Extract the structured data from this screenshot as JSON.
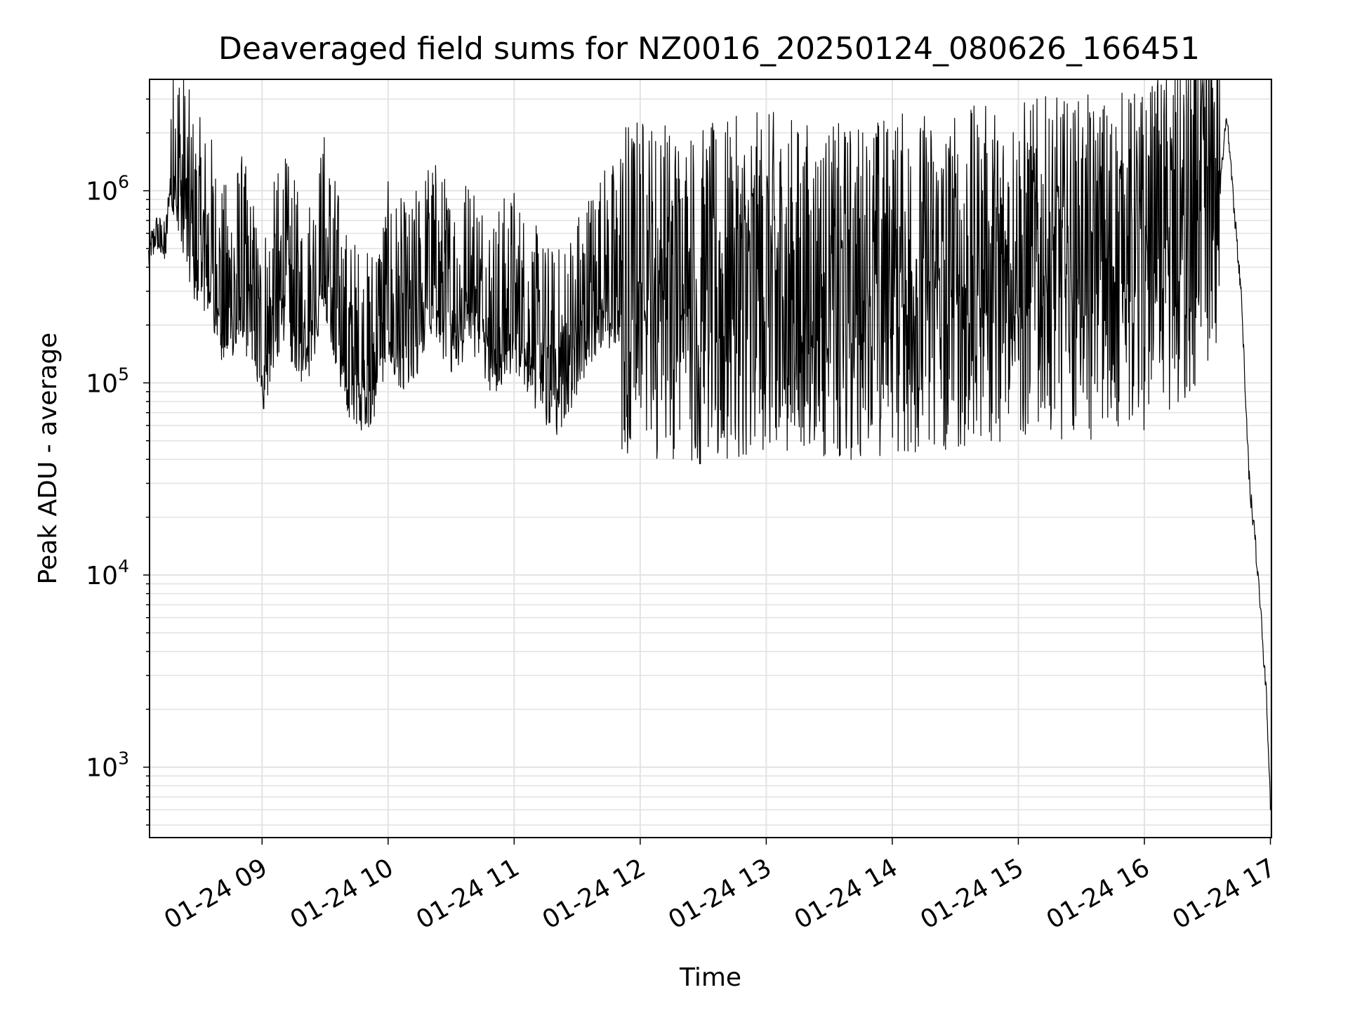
{
  "chart_data": {
    "type": "line",
    "title": "Deaveraged field sums for NZ0016_20250124_080626_166451",
    "xlabel": "Time",
    "ylabel": "Peak ADU - average",
    "yscale": "log",
    "ylim": [
      430,
      3800000
    ],
    "xlim": [
      "2025-01-24 08:06:26",
      "2025-01-24 17:00:30"
    ],
    "grid": true,
    "line_color": "#000000",
    "grid_color": "#e3e3e3",
    "x_ticks": [
      {
        "t": "2025-01-24 09:00",
        "label": "01-24 09"
      },
      {
        "t": "2025-01-24 10:00",
        "label": "01-24 10"
      },
      {
        "t": "2025-01-24 11:00",
        "label": "01-24 11"
      },
      {
        "t": "2025-01-24 12:00",
        "label": "01-24 12"
      },
      {
        "t": "2025-01-24 13:00",
        "label": "01-24 13"
      },
      {
        "t": "2025-01-24 14:00",
        "label": "01-24 14"
      },
      {
        "t": "2025-01-24 15:00",
        "label": "01-24 15"
      },
      {
        "t": "2025-01-24 16:00",
        "label": "01-24 16"
      },
      {
        "t": "2025-01-24 17:00",
        "label": "01-24 17"
      }
    ],
    "y_ticks": [
      {
        "value": 1000,
        "base": "10",
        "exp": "3"
      },
      {
        "value": 10000,
        "base": "10",
        "exp": "4"
      },
      {
        "value": 100000,
        "base": "10",
        "exp": "5"
      },
      {
        "value": 1000000,
        "base": "10",
        "exp": "6"
      }
    ],
    "series": [
      {
        "values": [
          [
            "2025-01-24 08:06",
            450000
          ],
          [
            "2025-01-24 08:10",
            600000
          ],
          [
            "2025-01-24 08:14",
            520000
          ],
          [
            "2025-01-24 08:17",
            1300000
          ],
          [
            "2025-01-24 08:20",
            1100000
          ],
          [
            "2025-01-24 08:24",
            700000
          ],
          [
            "2025-01-24 08:28",
            450000
          ],
          [
            "2025-01-24 08:35",
            400000
          ],
          [
            "2025-01-24 08:42",
            200000
          ],
          [
            "2025-01-24 08:50",
            300000
          ],
          [
            "2025-01-24 09:00",
            120000
          ],
          [
            "2025-01-24 09:10",
            300000
          ],
          [
            "2025-01-24 09:20",
            150000
          ],
          [
            "2025-01-24 09:30",
            400000
          ],
          [
            "2025-01-24 09:40",
            120000
          ],
          [
            "2025-01-24 09:50",
            90000
          ],
          [
            "2025-01-24 10:00",
            200000
          ],
          [
            "2025-01-24 10:10",
            150000
          ],
          [
            "2025-01-24 10:20",
            300000
          ],
          [
            "2025-01-24 10:30",
            200000
          ],
          [
            "2025-01-24 10:40",
            250000
          ],
          [
            "2025-01-24 10:50",
            150000
          ],
          [
            "2025-01-24 11:00",
            200000
          ],
          [
            "2025-01-24 11:10",
            120000
          ],
          [
            "2025-01-24 11:20",
            90000
          ],
          [
            "2025-01-24 11:30",
            150000
          ],
          [
            "2025-01-24 11:40",
            250000
          ],
          [
            "2025-01-24 12:00",
            300000
          ],
          [
            "2025-01-24 12:30",
            250000
          ],
          [
            "2025-01-24 13:00",
            300000
          ],
          [
            "2025-01-24 13:30",
            250000
          ],
          [
            "2025-01-24 14:00",
            300000
          ],
          [
            "2025-01-24 14:30",
            300000
          ],
          [
            "2025-01-24 15:00",
            350000
          ],
          [
            "2025-01-24 15:30",
            350000
          ],
          [
            "2025-01-24 16:00",
            400000
          ],
          [
            "2025-01-24 16:20",
            600000
          ],
          [
            "2025-01-24 16:36",
            1000000
          ],
          [
            "2025-01-24 16:39",
            2600000
          ],
          [
            "2025-01-24 16:42",
            1000000
          ],
          [
            "2025-01-24 16:46",
            300000
          ],
          [
            "2025-01-24 16:50",
            30000
          ],
          [
            "2025-01-24 16:53",
            14000
          ],
          [
            "2025-01-24 16:56",
            5000
          ],
          [
            "2025-01-24 16:58",
            2400
          ],
          [
            "2025-01-24 17:00",
            650
          ]
        ]
      }
    ]
  }
}
